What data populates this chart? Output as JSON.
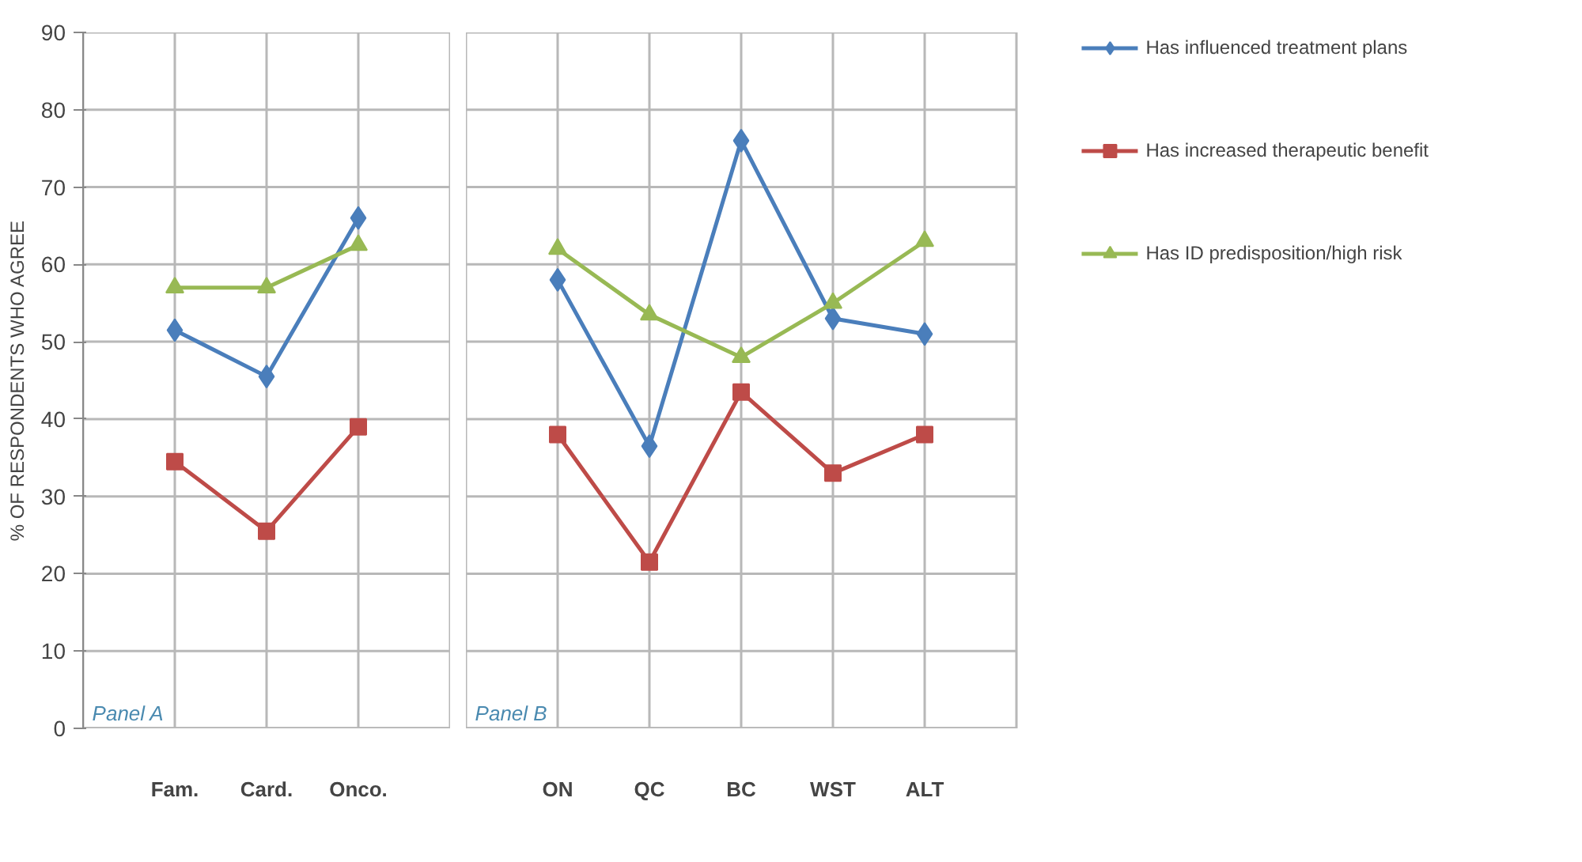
{
  "chart_data": [
    {
      "type": "line",
      "ylabel": "% OF RESPONDENTS WHO AGREE",
      "categories": [
        "Fam.",
        "Card.",
        "Onco."
      ],
      "ylim": [
        0,
        90
      ],
      "yticks": [
        0,
        10,
        20,
        30,
        40,
        50,
        60,
        70,
        80,
        90
      ],
      "grid": true,
      "annotations": [
        "Panel A"
      ],
      "series": [
        {
          "color": "#4a7ebb",
          "marker": "diamond",
          "values": [
            51.5,
            45.5,
            66
          ]
        },
        {
          "color": "#be4b48",
          "marker": "square",
          "values": [
            34.5,
            25.5,
            39
          ]
        },
        {
          "color": "#98b954",
          "marker": "triangle",
          "values": [
            57,
            57,
            62.5
          ]
        }
      ]
    },
    {
      "type": "line",
      "categories": [
        "ON",
        "QC",
        "BC",
        "WST",
        "ALT"
      ],
      "ylim": [
        0,
        90
      ],
      "yticks": [
        0,
        10,
        20,
        30,
        40,
        50,
        60,
        70,
        80,
        90
      ],
      "grid": true,
      "legend": "right",
      "tick_labels": "x",
      "annotations": [
        "Panel B"
      ],
      "series": [
        {
          "name": "Has influenced treatment plans",
          "color": "#4a7ebb",
          "marker": "diamond",
          "values": [
            58,
            36.5,
            76,
            53,
            51
          ]
        },
        {
          "name": "Has increased therapeutic benefit",
          "color": "#be4b48",
          "marker": "square",
          "values": [
            38,
            21.5,
            43.5,
            33,
            38
          ]
        },
        {
          "name": "Has ID predisposition/high risk",
          "color": "#98b954",
          "marker": "triangle",
          "values": [
            62,
            53.5,
            48,
            55,
            63
          ]
        }
      ]
    }
  ]
}
